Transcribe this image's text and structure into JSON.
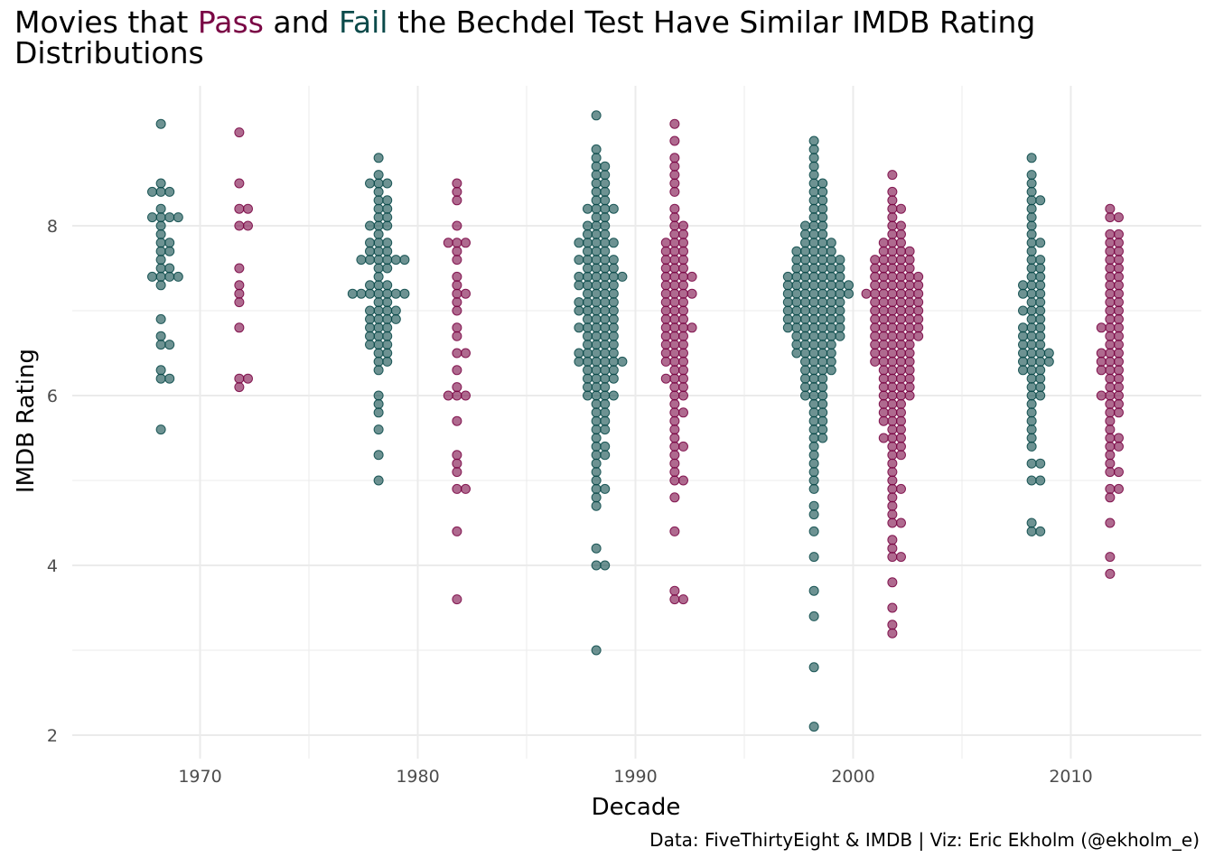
{
  "title": {
    "part1": "Movies that ",
    "pass": "Pass",
    "part2": " and ",
    "fail": "Fail",
    "part3": " the Bechdel Test Have Similar IMDB Rating",
    "line2": "Distributions"
  },
  "caption": "Data: FiveThirtyEight & IMDB | Viz: Eric Ekholm (@ekholm_e)",
  "colors": {
    "pass": "#7a0745",
    "fail": "#0b4a4a",
    "grid": "#ebebeb",
    "tick": "#4d4d4d"
  },
  "chart_data": {
    "type": "scatter",
    "subtype": "beeswarm",
    "xlabel": "Decade",
    "ylabel": "IMDB Rating",
    "x_ticks": [
      1970,
      1980,
      1990,
      2000,
      2010
    ],
    "y_ticks": [
      2,
      4,
      6,
      8
    ],
    "xlim": [
      1964,
      2016
    ],
    "ylim": [
      1.8,
      9.8
    ],
    "grid": true,
    "point_alpha": 0.6,
    "series": [
      {
        "name": "Fail",
        "color": "#0b4a4a",
        "groups": [
          {
            "decade": 1970,
            "center": 1968.2,
            "values": [
              9.2,
              8.5,
              8.4,
              8.4,
              8.4,
              8.2,
              8.1,
              8.1,
              8.1,
              8.1,
              8.0,
              7.9,
              7.8,
              7.8,
              7.7,
              7.7,
              7.6,
              7.5,
              7.5,
              7.4,
              7.4,
              7.4,
              7.4,
              7.3,
              6.9,
              6.7,
              6.6,
              6.6,
              6.3,
              6.2,
              6.2,
              5.6
            ]
          },
          {
            "decade": 1980,
            "center": 1978.2,
            "values": [
              8.8,
              8.6,
              8.5,
              8.5,
              8.5,
              8.4,
              8.3,
              8.3,
              8.2,
              8.2,
              8.1,
              8.1,
              8.0,
              8.0,
              8.0,
              7.9,
              7.8,
              7.8,
              7.8,
              7.7,
              7.7,
              7.7,
              7.6,
              7.6,
              7.6,
              7.6,
              7.6,
              7.6,
              7.5,
              7.5,
              7.4,
              7.3,
              7.3,
              7.3,
              7.2,
              7.2,
              7.2,
              7.2,
              7.2,
              7.2,
              7.2,
              7.1,
              7.1,
              7.0,
              7.0,
              7.0,
              7.0,
              6.9,
              6.9,
              6.9,
              6.9,
              6.8,
              6.8,
              6.8,
              6.7,
              6.7,
              6.7,
              6.6,
              6.6,
              6.6,
              6.5,
              6.5,
              6.4,
              6.4,
              6.3,
              6.0,
              5.9,
              5.8,
              5.6,
              5.3,
              5.0
            ]
          },
          {
            "decade": 1990,
            "center": 1988.2,
            "values": [
              9.3,
              8.9,
              8.8,
              8.7,
              8.7,
              8.6,
              8.6,
              8.5,
              8.5,
              8.4,
              8.4,
              8.3,
              8.3,
              8.2,
              8.2,
              8.2,
              8.2,
              8.1,
              8.1,
              8.0,
              8.0,
              8.0,
              7.9,
              7.9,
              7.9,
              7.8,
              7.8,
              7.8,
              7.8,
              7.8,
              7.7,
              7.7,
              7.7,
              7.6,
              7.6,
              7.6,
              7.6,
              7.6,
              7.5,
              7.5,
              7.5,
              7.5,
              7.4,
              7.4,
              7.4,
              7.4,
              7.4,
              7.4,
              7.3,
              7.3,
              7.3,
              7.3,
              7.3,
              7.2,
              7.2,
              7.2,
              7.2,
              7.1,
              7.1,
              7.1,
              7.1,
              7.1,
              7.0,
              7.0,
              7.0,
              7.0,
              7.0,
              6.9,
              6.9,
              6.9,
              6.9,
              6.8,
              6.8,
              6.8,
              6.8,
              6.8,
              6.7,
              6.7,
              6.7,
              6.7,
              6.6,
              6.6,
              6.6,
              6.6,
              6.5,
              6.5,
              6.5,
              6.5,
              6.5,
              6.4,
              6.4,
              6.4,
              6.4,
              6.4,
              6.4,
              6.3,
              6.3,
              6.3,
              6.3,
              6.2,
              6.2,
              6.2,
              6.2,
              6.1,
              6.1,
              6.1,
              6.0,
              6.0,
              6.0,
              6.0,
              5.9,
              5.9,
              5.8,
              5.8,
              5.7,
              5.7,
              5.6,
              5.6,
              5.5,
              5.4,
              5.4,
              5.3,
              5.3,
              5.2,
              5.1,
              5.0,
              4.9,
              4.9,
              4.8,
              4.7,
              4.2,
              4.0,
              4.0,
              3.0
            ]
          },
          {
            "decade": 2000,
            "center": 1998.2,
            "values": [
              9.0,
              8.9,
              8.8,
              8.7,
              8.6,
              8.5,
              8.5,
              8.4,
              8.4,
              8.3,
              8.3,
              8.2,
              8.2,
              8.1,
              8.1,
              8.0,
              8.0,
              8.0,
              7.9,
              7.9,
              7.9,
              7.8,
              7.8,
              7.8,
              7.8,
              7.7,
              7.7,
              7.7,
              7.7,
              7.7,
              7.6,
              7.6,
              7.6,
              7.6,
              7.6,
              7.6,
              7.5,
              7.5,
              7.5,
              7.5,
              7.5,
              7.5,
              7.4,
              7.4,
              7.4,
              7.4,
              7.4,
              7.4,
              7.4,
              7.3,
              7.3,
              7.3,
              7.3,
              7.3,
              7.3,
              7.3,
              7.3,
              7.2,
              7.2,
              7.2,
              7.2,
              7.2,
              7.2,
              7.2,
              7.2,
              7.1,
              7.1,
              7.1,
              7.1,
              7.1,
              7.1,
              7.1,
              7.0,
              7.0,
              7.0,
              7.0,
              7.0,
              7.0,
              7.0,
              6.9,
              6.9,
              6.9,
              6.9,
              6.9,
              6.9,
              6.9,
              6.8,
              6.8,
              6.8,
              6.8,
              6.8,
              6.8,
              6.8,
              6.7,
              6.7,
              6.7,
              6.7,
              6.7,
              6.7,
              6.6,
              6.6,
              6.6,
              6.6,
              6.6,
              6.5,
              6.5,
              6.5,
              6.5,
              6.5,
              6.4,
              6.4,
              6.4,
              6.4,
              6.3,
              6.3,
              6.3,
              6.3,
              6.2,
              6.2,
              6.2,
              6.1,
              6.1,
              6.1,
              6.0,
              6.0,
              6.0,
              5.9,
              5.9,
              5.8,
              5.8,
              5.7,
              5.7,
              5.6,
              5.6,
              5.5,
              5.5,
              5.4,
              5.3,
              5.2,
              5.1,
              5.0,
              4.9,
              4.7,
              4.6,
              4.4,
              4.1,
              3.7,
              3.4,
              2.8,
              2.1
            ]
          },
          {
            "decade": 2010,
            "center": 2008.2,
            "values": [
              8.8,
              8.6,
              8.5,
              8.4,
              8.3,
              8.3,
              8.2,
              8.1,
              8.0,
              7.9,
              7.8,
              7.8,
              7.7,
              7.6,
              7.6,
              7.5,
              7.5,
              7.4,
              7.4,
              7.3,
              7.3,
              7.3,
              7.2,
              7.2,
              7.2,
              7.1,
              7.1,
              7.0,
              7.0,
              7.0,
              6.9,
              6.9,
              6.8,
              6.8,
              6.8,
              6.7,
              6.7,
              6.7,
              6.6,
              6.6,
              6.6,
              6.5,
              6.5,
              6.5,
              6.5,
              6.4,
              6.4,
              6.4,
              6.4,
              6.3,
              6.3,
              6.3,
              6.2,
              6.2,
              6.1,
              6.1,
              6.0,
              6.0,
              5.9,
              5.8,
              5.7,
              5.6,
              5.5,
              5.4,
              5.2,
              5.2,
              5.0,
              5.0,
              4.5,
              4.4,
              4.4
            ]
          }
        ]
      },
      {
        "name": "Pass",
        "color": "#7a0745",
        "groups": [
          {
            "decade": 1970,
            "center": 1971.8,
            "values": [
              9.1,
              8.5,
              8.2,
              8.2,
              8.0,
              8.0,
              7.5,
              7.3,
              7.2,
              7.1,
              6.8,
              6.2,
              6.2,
              6.1
            ]
          },
          {
            "decade": 1980,
            "center": 1981.8,
            "values": [
              8.5,
              8.4,
              8.3,
              8.0,
              7.8,
              7.8,
              7.8,
              7.7,
              7.6,
              7.4,
              7.3,
              7.2,
              7.2,
              7.1,
              7.0,
              6.8,
              6.7,
              6.5,
              6.5,
              6.3,
              6.1,
              6.0,
              6.0,
              6.0,
              5.7,
              5.3,
              5.2,
              5.1,
              4.9,
              4.9,
              4.4,
              3.6
            ]
          },
          {
            "decade": 1990,
            "center": 1991.8,
            "values": [
              9.2,
              9.0,
              8.8,
              8.7,
              8.6,
              8.5,
              8.4,
              8.2,
              8.1,
              8.0,
              8.0,
              7.9,
              7.9,
              7.8,
              7.8,
              7.8,
              7.7,
              7.7,
              7.7,
              7.6,
              7.6,
              7.6,
              7.5,
              7.5,
              7.5,
              7.4,
              7.4,
              7.4,
              7.4,
              7.3,
              7.3,
              7.3,
              7.2,
              7.2,
              7.2,
              7.2,
              7.1,
              7.1,
              7.1,
              7.0,
              7.0,
              7.0,
              6.9,
              6.9,
              6.9,
              6.8,
              6.8,
              6.8,
              6.8,
              6.7,
              6.7,
              6.7,
              6.6,
              6.6,
              6.6,
              6.5,
              6.5,
              6.5,
              6.4,
              6.4,
              6.4,
              6.3,
              6.3,
              6.2,
              6.2,
              6.2,
              6.1,
              6.1,
              6.0,
              6.0,
              5.9,
              5.8,
              5.8,
              5.7,
              5.6,
              5.5,
              5.4,
              5.4,
              5.3,
              5.2,
              5.1,
              5.0,
              5.0,
              4.8,
              4.4,
              3.7,
              3.6,
              3.6
            ]
          },
          {
            "decade": 2000,
            "center": 2001.8,
            "values": [
              8.6,
              8.4,
              8.3,
              8.2,
              8.2,
              8.1,
              8.0,
              8.0,
              7.9,
              7.9,
              7.8,
              7.8,
              7.8,
              7.7,
              7.7,
              7.7,
              7.7,
              7.6,
              7.6,
              7.6,
              7.6,
              7.6,
              7.5,
              7.5,
              7.5,
              7.5,
              7.5,
              7.4,
              7.4,
              7.4,
              7.4,
              7.4,
              7.4,
              7.3,
              7.3,
              7.3,
              7.3,
              7.3,
              7.3,
              7.2,
              7.2,
              7.2,
              7.2,
              7.2,
              7.2,
              7.2,
              7.1,
              7.1,
              7.1,
              7.1,
              7.1,
              7.1,
              7.0,
              7.0,
              7.0,
              7.0,
              7.0,
              7.0,
              6.9,
              6.9,
              6.9,
              6.9,
              6.9,
              6.9,
              6.8,
              6.8,
              6.8,
              6.8,
              6.8,
              6.8,
              6.7,
              6.7,
              6.7,
              6.7,
              6.7,
              6.7,
              6.6,
              6.6,
              6.6,
              6.6,
              6.6,
              6.5,
              6.5,
              6.5,
              6.5,
              6.5,
              6.4,
              6.4,
              6.4,
              6.4,
              6.4,
              6.3,
              6.3,
              6.3,
              6.3,
              6.2,
              6.2,
              6.2,
              6.2,
              6.1,
              6.1,
              6.1,
              6.1,
              6.0,
              6.0,
              6.0,
              6.0,
              5.9,
              5.9,
              5.9,
              5.8,
              5.8,
              5.8,
              5.7,
              5.7,
              5.7,
              5.6,
              5.6,
              5.5,
              5.5,
              5.5,
              5.4,
              5.4,
              5.3,
              5.3,
              5.2,
              5.1,
              5.0,
              4.9,
              4.9,
              4.8,
              4.7,
              4.6,
              4.5,
              4.5,
              4.3,
              4.2,
              4.1,
              4.1,
              3.8,
              3.5,
              3.3,
              3.2
            ]
          },
          {
            "decade": 2010,
            "center": 2011.8,
            "values": [
              8.2,
              8.1,
              8.1,
              7.9,
              7.9,
              7.8,
              7.8,
              7.7,
              7.7,
              7.6,
              7.6,
              7.5,
              7.5,
              7.4,
              7.4,
              7.3,
              7.3,
              7.2,
              7.2,
              7.1,
              7.1,
              7.0,
              7.0,
              6.9,
              6.9,
              6.8,
              6.8,
              6.8,
              6.7,
              6.7,
              6.6,
              6.6,
              6.5,
              6.5,
              6.5,
              6.4,
              6.4,
              6.4,
              6.3,
              6.3,
              6.3,
              6.2,
              6.2,
              6.1,
              6.1,
              6.0,
              6.0,
              6.0,
              5.9,
              5.9,
              5.8,
              5.8,
              5.7,
              5.6,
              5.5,
              5.5,
              5.4,
              5.4,
              5.3,
              5.2,
              5.1,
              5.1,
              4.9,
              4.9,
              4.8,
              4.5,
              4.1,
              3.9
            ]
          }
        ]
      }
    ]
  }
}
